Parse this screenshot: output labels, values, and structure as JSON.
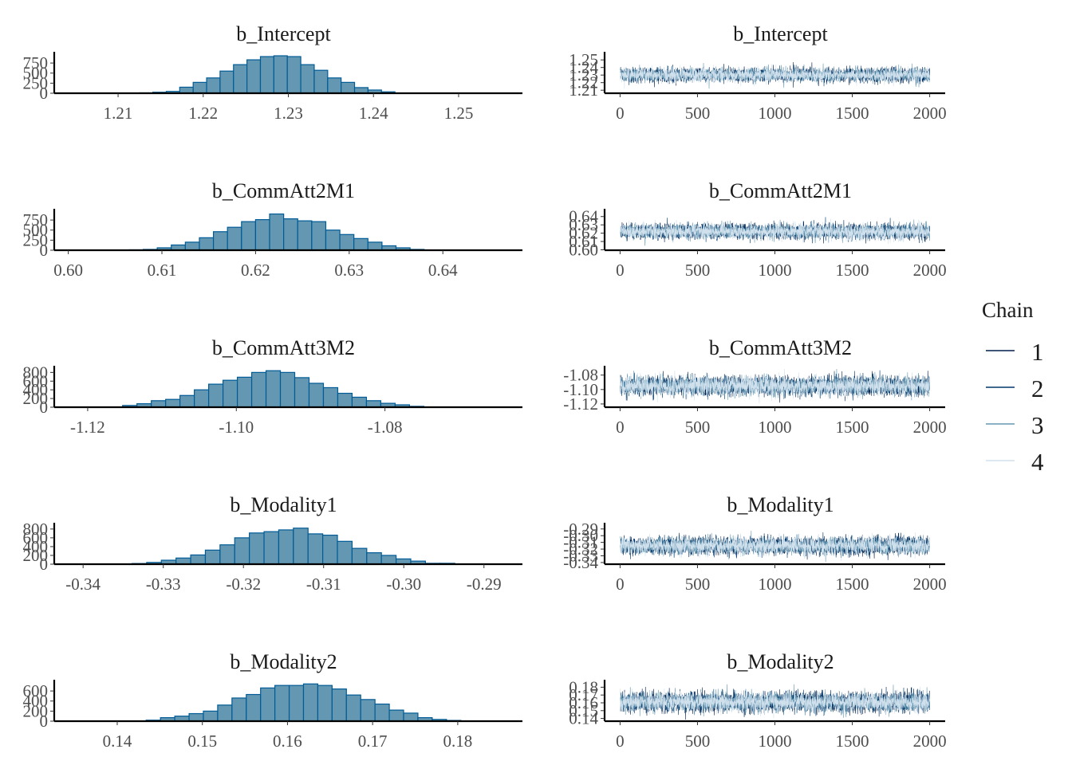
{
  "figure": {
    "type": "mcmc_plot",
    "legend": {
      "title": "Chain",
      "position": "right",
      "entries": [
        {
          "label": "1",
          "color": "#011f4b"
        },
        {
          "label": "2",
          "color": "#03396c"
        },
        {
          "label": "3",
          "color": "#6497b1"
        },
        {
          "label": "4",
          "color": "#d0e1ed"
        }
      ]
    },
    "hist_fill": "#6497b1",
    "hist_stroke": "#005b96"
  },
  "chart_data": [
    {
      "type": "bar",
      "panel": "histogram",
      "title": "b_Intercept",
      "xlim": [
        1.2025,
        1.2575
      ],
      "ylim": [
        0,
        950
      ],
      "xticks": [
        "1.21",
        "1.22",
        "1.23",
        "1.24",
        "1.25"
      ],
      "xtick_values": [
        1.21,
        1.22,
        1.23,
        1.24,
        1.25
      ],
      "yticks": [
        "0",
        "250",
        "500",
        "750"
      ],
      "ytick_values": [
        0,
        250,
        500,
        750
      ],
      "bin_start": 1.2125,
      "bin_width": 0.00158,
      "values": [
        10,
        25,
        45,
        150,
        270,
        380,
        550,
        710,
        830,
        910,
        930,
        910,
        710,
        570,
        380,
        270,
        140,
        80,
        35
      ]
    },
    {
      "type": "line",
      "panel": "trace",
      "title": "b_Intercept",
      "xlim": [
        -100,
        2100
      ],
      "ylim": [
        1.206,
        1.2565
      ],
      "xticks": [
        "0",
        "500",
        "1000",
        "1500",
        "2000"
      ],
      "xtick_values": [
        0,
        500,
        1000,
        1500,
        2000
      ],
      "yticks": [
        "1.21",
        "1.22",
        "1.23",
        "1.24",
        "1.25"
      ],
      "ytick_values": [
        1.21,
        1.22,
        1.23,
        1.24,
        1.25
      ],
      "mean": 1.23,
      "sd": 0.0045,
      "iterations": 2000,
      "chains": 4
    },
    {
      "type": "bar",
      "panel": "histogram",
      "title": "b_CommAtt2M1",
      "xlim": [
        0.5985,
        0.6485
      ],
      "ylim": [
        0,
        950
      ],
      "xticks": [
        "0.60",
        "0.61",
        "0.62",
        "0.63",
        "0.64"
      ],
      "xtick_values": [
        0.6,
        0.61,
        0.62,
        0.63,
        0.64
      ],
      "yticks": [
        "0",
        "250",
        "500",
        "750"
      ],
      "ytick_values": [
        0,
        250,
        500,
        750
      ],
      "bin_start": 0.6065,
      "bin_width": 0.0015,
      "values": [
        10,
        20,
        60,
        130,
        200,
        310,
        460,
        570,
        710,
        760,
        900,
        780,
        730,
        710,
        500,
        390,
        290,
        200,
        110,
        60,
        20
      ]
    },
    {
      "type": "line",
      "panel": "trace",
      "title": "b_CommAtt2M1",
      "xlim": [
        -100,
        2100
      ],
      "ylim": [
        0.5995,
        0.6455
      ],
      "xticks": [
        "0",
        "500",
        "1000",
        "1500",
        "2000"
      ],
      "xtick_values": [
        0,
        500,
        1000,
        1500,
        2000
      ],
      "yticks": [
        "0.60",
        "0.61",
        "0.62",
        "0.63",
        "0.64"
      ],
      "ytick_values": [
        0.6,
        0.61,
        0.62,
        0.63,
        0.64
      ],
      "mean": 0.622,
      "sd": 0.0045,
      "iterations": 2000,
      "chains": 4
    },
    {
      "type": "bar",
      "panel": "histogram",
      "title": "b_CommAtt3M2",
      "xlim": [
        -1.1245,
        -1.0615
      ],
      "ylim": [
        0,
        880
      ],
      "xticks": [
        "-1.12",
        "-1.10",
        "-1.08"
      ],
      "xtick_values": [
        -1.12,
        -1.1,
        -1.08
      ],
      "yticks": [
        "0",
        "200",
        "400",
        "600",
        "800"
      ],
      "ytick_values": [
        0,
        200,
        400,
        600,
        800
      ],
      "bin_start": -1.1153,
      "bin_width": 0.00193,
      "values": [
        40,
        80,
        150,
        180,
        270,
        400,
        530,
        620,
        690,
        800,
        840,
        800,
        680,
        550,
        450,
        320,
        230,
        150,
        90,
        55,
        20
      ]
    },
    {
      "type": "line",
      "panel": "trace",
      "title": "b_CommAtt3M2",
      "xlim": [
        -100,
        2100
      ],
      "ylim": [
        -1.1245,
        -1.0715
      ],
      "xticks": [
        "0",
        "500",
        "1000",
        "1500",
        "2000"
      ],
      "xtick_values": [
        0,
        500,
        1000,
        1500,
        2000
      ],
      "yticks": [
        "-1.12",
        "-1.10",
        "-1.08"
      ],
      "ytick_values": [
        -1.12,
        -1.1,
        -1.08
      ],
      "mean": -1.095,
      "sd": 0.0065,
      "iterations": 2000,
      "chains": 4
    },
    {
      "type": "bar",
      "panel": "histogram",
      "title": "b_Modality1",
      "xlim": [
        -0.3436,
        -0.2852
      ],
      "ylim": [
        0,
        870
      ],
      "xticks": [
        "-0.34",
        "-0.33",
        "-0.32",
        "-0.31",
        "-0.30",
        "-0.29"
      ],
      "xtick_values": [
        -0.34,
        -0.33,
        -0.32,
        -0.31,
        -0.3,
        -0.29
      ],
      "yticks": [
        "0",
        "200",
        "400",
        "600",
        "800"
      ],
      "ytick_values": [
        0,
        200,
        400,
        600,
        800
      ],
      "bin_start": -0.3339,
      "bin_width": 0.00183,
      "values": [
        15,
        40,
        90,
        140,
        210,
        320,
        440,
        600,
        710,
        740,
        780,
        820,
        690,
        660,
        520,
        360,
        260,
        200,
        120,
        70,
        20,
        20
      ]
    },
    {
      "type": "line",
      "panel": "trace",
      "title": "b_Modality1",
      "xlim": [
        -100,
        2100
      ],
      "ylim": [
        -0.3425,
        -0.2855
      ],
      "xticks": [
        "0",
        "500",
        "1000",
        "1500",
        "2000"
      ],
      "xtick_values": [
        0,
        500,
        1000,
        1500,
        2000
      ],
      "yticks": [
        "-0.34",
        "-0.33",
        "-0.32",
        "-0.31",
        "-0.30",
        "-0.29"
      ],
      "ytick_values": [
        -0.34,
        -0.33,
        -0.32,
        -0.31,
        -0.3,
        -0.29
      ],
      "mean": -0.315,
      "sd": 0.0063,
      "iterations": 2000,
      "chains": 4
    },
    {
      "type": "bar",
      "panel": "histogram",
      "title": "b_Modality2",
      "xlim": [
        0.1326,
        0.1876
      ],
      "ylim": [
        0,
        760
      ],
      "xticks": [
        "0.14",
        "0.15",
        "0.16",
        "0.17",
        "0.18"
      ],
      "xtick_values": [
        0.14,
        0.15,
        0.16,
        0.17,
        0.18
      ],
      "yticks": [
        "0",
        "200",
        "400",
        "600"
      ],
      "ytick_values": [
        0,
        200,
        400,
        600
      ],
      "bin_start": 0.1434,
      "bin_width": 0.00168,
      "values": [
        20,
        70,
        100,
        150,
        200,
        320,
        460,
        530,
        660,
        710,
        710,
        740,
        710,
        640,
        520,
        430,
        340,
        220,
        160,
        70,
        35,
        15
      ]
    },
    {
      "type": "line",
      "panel": "trace",
      "title": "b_Modality2",
      "xlim": [
        -100,
        2100
      ],
      "ylim": [
        0.1365,
        0.1855
      ],
      "xticks": [
        "0",
        "500",
        "1000",
        "1500",
        "2000"
      ],
      "xtick_values": [
        0,
        500,
        1000,
        1500,
        2000
      ],
      "yticks": [
        "0.14",
        "0.15",
        "0.16",
        "0.17",
        "0.18"
      ],
      "ytick_values": [
        0.14,
        0.15,
        0.16,
        0.17,
        0.18
      ],
      "mean": 0.161,
      "sd": 0.0062,
      "iterations": 2000,
      "chains": 4
    }
  ]
}
